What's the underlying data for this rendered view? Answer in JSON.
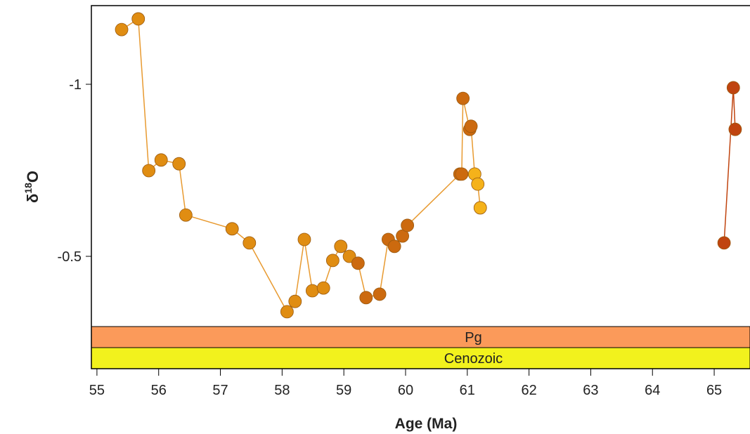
{
  "chart_data": {
    "type": "scatter-line",
    "xlabel": "Age (Ma)",
    "ylabel": [
      "δ",
      "18",
      "O"
    ],
    "xlim": [
      54.91,
      65.58
    ],
    "ylim": [
      -1.2286,
      -0.1735
    ],
    "y_inverted": true,
    "xticks": [
      55,
      56,
      57,
      58,
      59,
      60,
      61,
      62,
      63,
      64,
      65
    ],
    "yticks": [
      -1,
      -0.5
    ],
    "bands": [
      {
        "label": "Pg",
        "color": "#fb9a5a"
      },
      {
        "label": "Cenozoic",
        "color": "#f2f21d"
      }
    ],
    "series": [
      {
        "line_color": "#e89a30",
        "x": [
          55.4,
          55.67,
          55.84,
          56.04,
          56.33,
          56.44,
          57.19,
          57.47,
          58.08,
          58.21,
          58.36,
          58.49,
          58.67,
          58.82,
          58.95,
          59.09,
          59.23,
          59.36,
          59.58,
          59.72,
          59.82,
          59.95,
          60.03,
          60.88,
          60.91,
          60.93,
          61.04,
          61.06,
          61.12,
          61.17,
          61.21
        ],
        "values": [
          -1.159,
          -1.19,
          -0.749,
          -0.78,
          -0.769,
          -0.62,
          -0.58,
          -0.539,
          -0.339,
          -0.369,
          -0.549,
          -0.4,
          -0.408,
          -0.488,
          -0.529,
          -0.5,
          -0.48,
          -0.38,
          -0.39,
          -0.549,
          -0.529,
          -0.559,
          -0.59,
          -0.739,
          -0.739,
          -0.959,
          -0.869,
          -0.878,
          -0.739,
          -0.71,
          -0.641
        ],
        "colors": [
          "#e08d12",
          "#e08d12",
          "#e08d12",
          "#e08d12",
          "#e08d12",
          "#e08d12",
          "#e08d12",
          "#e08d12",
          "#e08d12",
          "#e08d12",
          "#e08d12",
          "#e08d12",
          "#e08d12",
          "#e08d12",
          "#e08d12",
          "#e08d12",
          "#cc6a0f",
          "#cc6a0f",
          "#cc6a0f",
          "#cc6a0f",
          "#cc6a0f",
          "#cc6a0f",
          "#cc6a0f",
          "#cc6a0f",
          "#cc6a0f",
          "#cc6a0f",
          "#cc6a0f",
          "#cc6a0f",
          "#f5b21a",
          "#f5b21a",
          "#f5b21a"
        ]
      },
      {
        "line_color": "#c0440f",
        "x": [
          65.16,
          65.31,
          65.34
        ],
        "values": [
          -0.539,
          -0.99,
          -0.869
        ],
        "colors": [
          "#c0440f",
          "#c0440f",
          "#c0440f"
        ]
      }
    ]
  }
}
